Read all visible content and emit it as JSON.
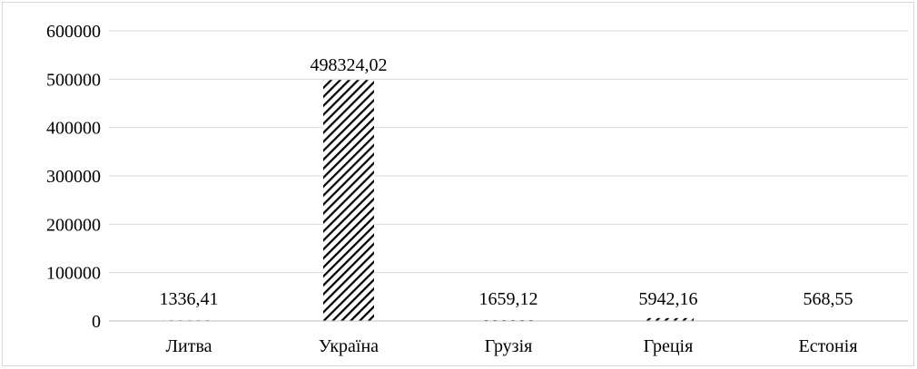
{
  "chart_data": {
    "type": "bar",
    "categories": [
      "Литва",
      "Україна",
      "Грузія",
      "Греція",
      "Естонія"
    ],
    "values": [
      1336.41,
      498324.02,
      1659.12,
      5942.16,
      568.55
    ],
    "value_labels": [
      "1336,41",
      "498324,02",
      "1659,12",
      "5942,16",
      "568,55"
    ],
    "yticks": [
      "0",
      "100000",
      "200000",
      "300000",
      "400000",
      "500000",
      "600000"
    ],
    "ylim": [
      0,
      600000
    ],
    "grid": true,
    "legend": "none",
    "bar_fill": "diagonal-hatch",
    "colors": {
      "bar": "#000000",
      "gridline": "#d9d9d9",
      "axis": "#bfbfbf"
    }
  }
}
